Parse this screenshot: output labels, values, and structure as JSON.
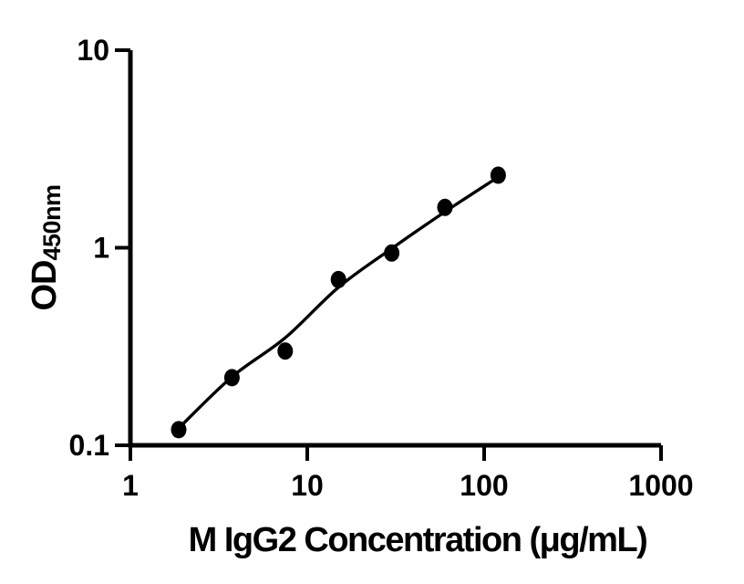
{
  "figure": {
    "background": "#ffffff",
    "ink": "#000000"
  },
  "chart_data": {
    "type": "scatter",
    "x_scale": "log",
    "y_scale": "log",
    "xlim": [
      1,
      1000
    ],
    "ylim": [
      0.1,
      10
    ],
    "grid": false,
    "legend": "none",
    "xlabel": "M IgG2 Concentration (μg/mL)",
    "ylabel_main": "OD",
    "ylabel_sub": "450nm",
    "x_ticks": [
      {
        "value": 1,
        "label": "1"
      },
      {
        "value": 10,
        "label": "10"
      },
      {
        "value": 100,
        "label": "100"
      },
      {
        "value": 1000,
        "label": "1000"
      }
    ],
    "y_ticks": [
      {
        "value": 10,
        "label": "10"
      },
      {
        "value": 1,
        "label": "1"
      },
      {
        "value": 0.1,
        "label": "0.1"
      }
    ],
    "series": [
      {
        "marker": "filled-circle",
        "x": [
          1.875,
          3.75,
          7.5,
          15,
          30,
          60,
          120
        ],
        "y": [
          0.12,
          0.22,
          0.3,
          0.69,
          0.94,
          1.6,
          2.33
        ]
      }
    ],
    "fit_curve": {
      "x": [
        1.875,
        3.75,
        7.5,
        15,
        30,
        60,
        120
      ],
      "y": [
        0.122,
        0.222,
        0.35,
        0.63,
        0.99,
        1.52,
        2.28
      ]
    }
  }
}
